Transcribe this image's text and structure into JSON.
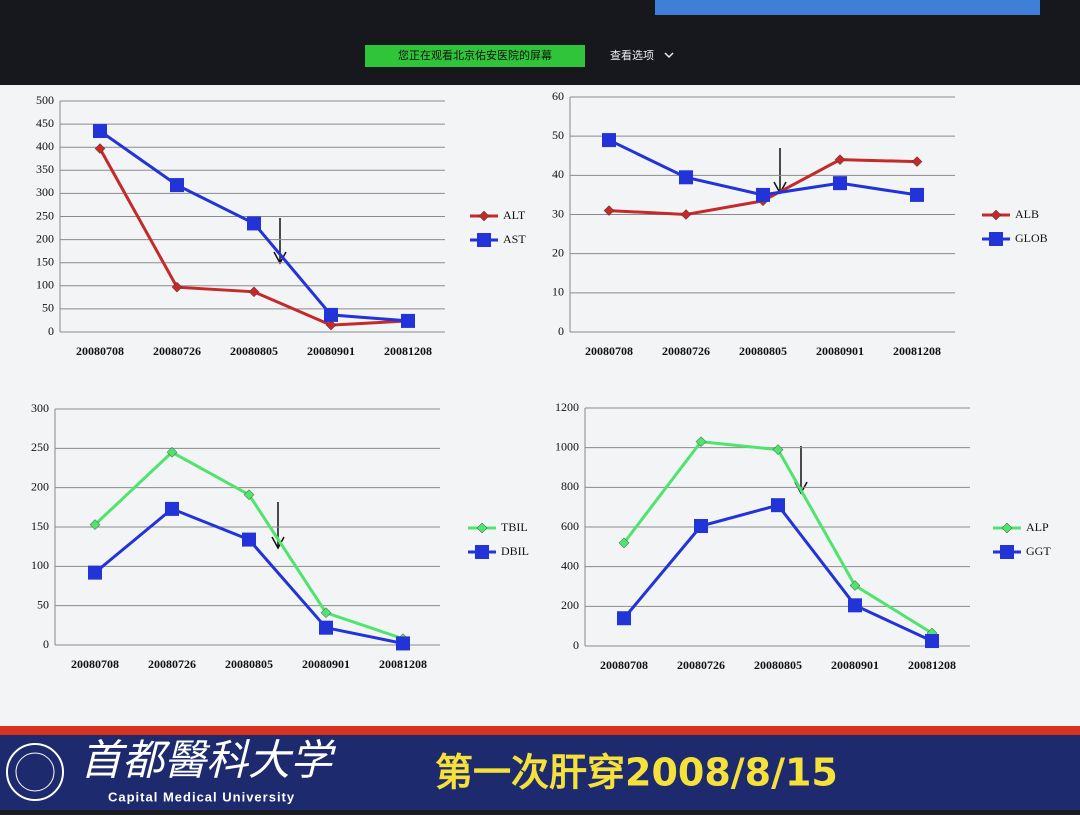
{
  "header": {
    "banner": "您正在观看北京佑安医院的屏幕",
    "options": "查看选项"
  },
  "footer": {
    "university_cn": "首都醫科大学",
    "university_en": "Capital Medical University",
    "caption": "第一次肝穿2008/8/15"
  },
  "chart_data": [
    {
      "type": "line",
      "categories": [
        "20080708",
        "20080726",
        "20080805",
        "20080901",
        "20081208"
      ],
      "ylim": [
        0,
        500
      ],
      "yticks": [
        0,
        50,
        100,
        150,
        200,
        250,
        300,
        350,
        400,
        450,
        500
      ],
      "grid": true,
      "legend": "right",
      "series": [
        {
          "name": "ALT",
          "color": "#c42a2a",
          "marker": "diamond",
          "values": [
            397,
            97,
            87,
            15,
            24
          ]
        },
        {
          "name": "AST",
          "color": "#2233d8",
          "marker": "square",
          "values": [
            435,
            318,
            235,
            37,
            24
          ]
        }
      ]
    },
    {
      "type": "line",
      "categories": [
        "20080708",
        "20080726",
        "20080805",
        "20080901",
        "20081208"
      ],
      "ylim": [
        0,
        60
      ],
      "yticks": [
        0,
        10,
        20,
        30,
        40,
        50,
        60
      ],
      "grid": true,
      "legend": "right",
      "series": [
        {
          "name": "ALB",
          "color": "#c42a2a",
          "marker": "diamond",
          "values": [
            31,
            30,
            33.5,
            44,
            43.5
          ]
        },
        {
          "name": "GLOB",
          "color": "#2233d8",
          "marker": "square",
          "values": [
            49,
            39.5,
            35,
            38,
            35
          ]
        }
      ]
    },
    {
      "type": "line",
      "categories": [
        "20080708",
        "20080726",
        "20080805",
        "20080901",
        "20081208"
      ],
      "ylim": [
        0,
        300
      ],
      "yticks": [
        0,
        50,
        100,
        150,
        200,
        250,
        300
      ],
      "grid": true,
      "legend": "right",
      "series": [
        {
          "name": "TBIL",
          "color": "#4fe46e",
          "marker": "diamond",
          "values": [
            153,
            245,
            191,
            41,
            8
          ]
        },
        {
          "name": "DBIL",
          "color": "#2233d8",
          "marker": "square",
          "values": [
            92,
            173,
            134,
            22,
            2
          ]
        }
      ]
    },
    {
      "type": "line",
      "categories": [
        "20080708",
        "20080726",
        "20080805",
        "20080901",
        "20081208"
      ],
      "ylim": [
        0,
        1200
      ],
      "yticks": [
        0,
        200,
        400,
        600,
        800,
        1000,
        1200
      ],
      "grid": true,
      "legend": "right",
      "series": [
        {
          "name": "ALP",
          "color": "#4fe46e",
          "marker": "diamond",
          "values": [
            520,
            1030,
            990,
            305,
            65
          ]
        },
        {
          "name": "GGT",
          "color": "#2233d8",
          "marker": "square",
          "values": [
            140,
            605,
            710,
            205,
            25
          ]
        }
      ]
    }
  ]
}
